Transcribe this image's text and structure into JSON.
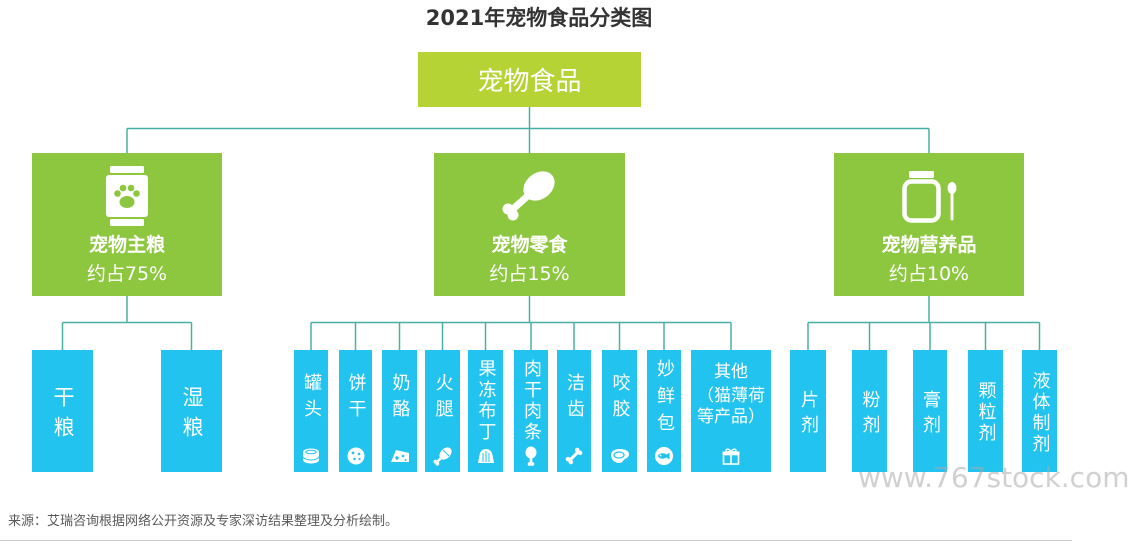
{
  "title": "2021年宠物食品分类图",
  "root": {
    "label": "宠物食品"
  },
  "categories": [
    {
      "name": "宠物主粮",
      "share": "约占75%",
      "icon": "pet-food-bag-icon",
      "children": [
        {
          "label": "干粮"
        },
        {
          "label": "湿粮"
        }
      ]
    },
    {
      "name": "宠物零食",
      "share": "约占15%",
      "icon": "drumstick-icon",
      "children": [
        {
          "label": "罐头",
          "icon": "can-icon"
        },
        {
          "label": "饼干",
          "icon": "biscuit-icon"
        },
        {
          "label": "奶酪",
          "icon": "cheese-icon"
        },
        {
          "label": "火腿",
          "icon": "ham-icon"
        },
        {
          "label": "果冻布丁",
          "icon": "jelly-pudding-icon"
        },
        {
          "label": "肉干肉条",
          "icon": "drumstick-icon"
        },
        {
          "label": "洁齿",
          "icon": "bone-icon"
        },
        {
          "label": "咬胶",
          "icon": "steak-icon"
        },
        {
          "label": "妙鲜包",
          "icon": "fish-icon"
        },
        {
          "label": "其他",
          "note": "（猫薄荷等产品）",
          "icon": "gift-icon"
        }
      ]
    },
    {
      "name": "宠物营养品",
      "share": "约占10%",
      "icon": "supplement-jar-icon",
      "children": [
        {
          "label": "片剂"
        },
        {
          "label": "粉剂"
        },
        {
          "label": "膏剂"
        },
        {
          "label": "颗粒剂"
        },
        {
          "label": "液体制剂"
        }
      ]
    }
  ],
  "source": "来源：艾瑞咨询根据网络公开资源及专家深访结果整理及分析绘制。",
  "watermark": "www.767stock.com",
  "colors": {
    "root": "#b5d334",
    "category": "#8dc63f",
    "leaf": "#22c3ee",
    "connector": "#48b0a2",
    "title": "#333333"
  }
}
